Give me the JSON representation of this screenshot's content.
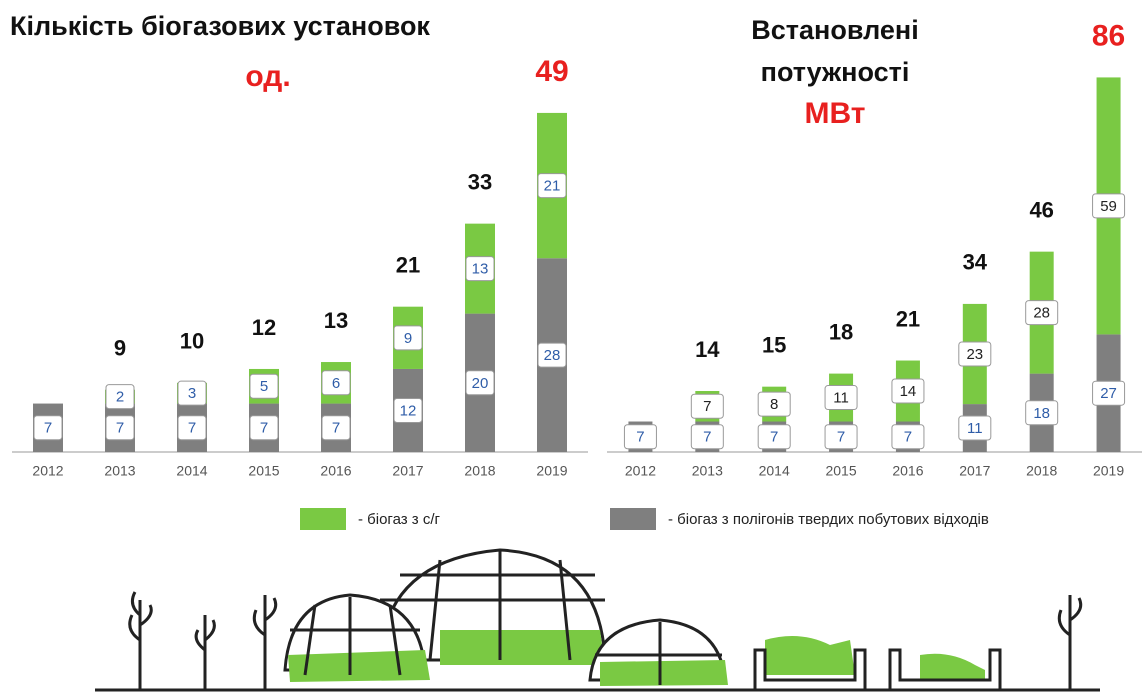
{
  "chart_data": [
    {
      "type": "stacked-bar",
      "title": [
        "Кількість біогазових установок"
      ],
      "unit": "од.",
      "categories": [
        "2012",
        "2013",
        "2014",
        "2015",
        "2016",
        "2017",
        "2018",
        "2019"
      ],
      "series": [
        {
          "name": "- біогаз з полігонів твердих побутових відходів",
          "color": "#7f7f7f",
          "label_color": "#2f5da8",
          "values": [
            7,
            7,
            7,
            7,
            7,
            12,
            20,
            28
          ]
        },
        {
          "name": "- біогаз з с/г",
          "color": "#7ac943",
          "label_color": "#2f5da8",
          "values": [
            null,
            2,
            3,
            5,
            6,
            9,
            13,
            21
          ]
        }
      ],
      "totals": [
        null,
        9,
        10,
        12,
        13,
        21,
        33,
        49
      ],
      "ylim": [
        0,
        50
      ],
      "highlight_color": "#e8201f"
    },
    {
      "type": "stacked-bar",
      "title": [
        "Встановлені",
        "потужності"
      ],
      "unit": "МВт",
      "categories": [
        "2012",
        "2013",
        "2014",
        "2015",
        "2016",
        "2017",
        "2018",
        "2019"
      ],
      "series": [
        {
          "name": "- біогаз з полігонів твердих побутових відходів",
          "color": "#7f7f7f",
          "label_color": "#2f5da8",
          "values": [
            7,
            7,
            7,
            7,
            7,
            11,
            18,
            27
          ]
        },
        {
          "name": "- біогаз з с/г",
          "color": "#7ac943",
          "label_color": "#222222",
          "values": [
            null,
            7,
            8,
            11,
            14,
            23,
            28,
            59
          ]
        }
      ],
      "totals": [
        null,
        14,
        15,
        18,
        21,
        34,
        46,
        86
      ],
      "ylim": [
        0,
        90
      ],
      "highlight_color": "#e8201f"
    }
  ]
}
